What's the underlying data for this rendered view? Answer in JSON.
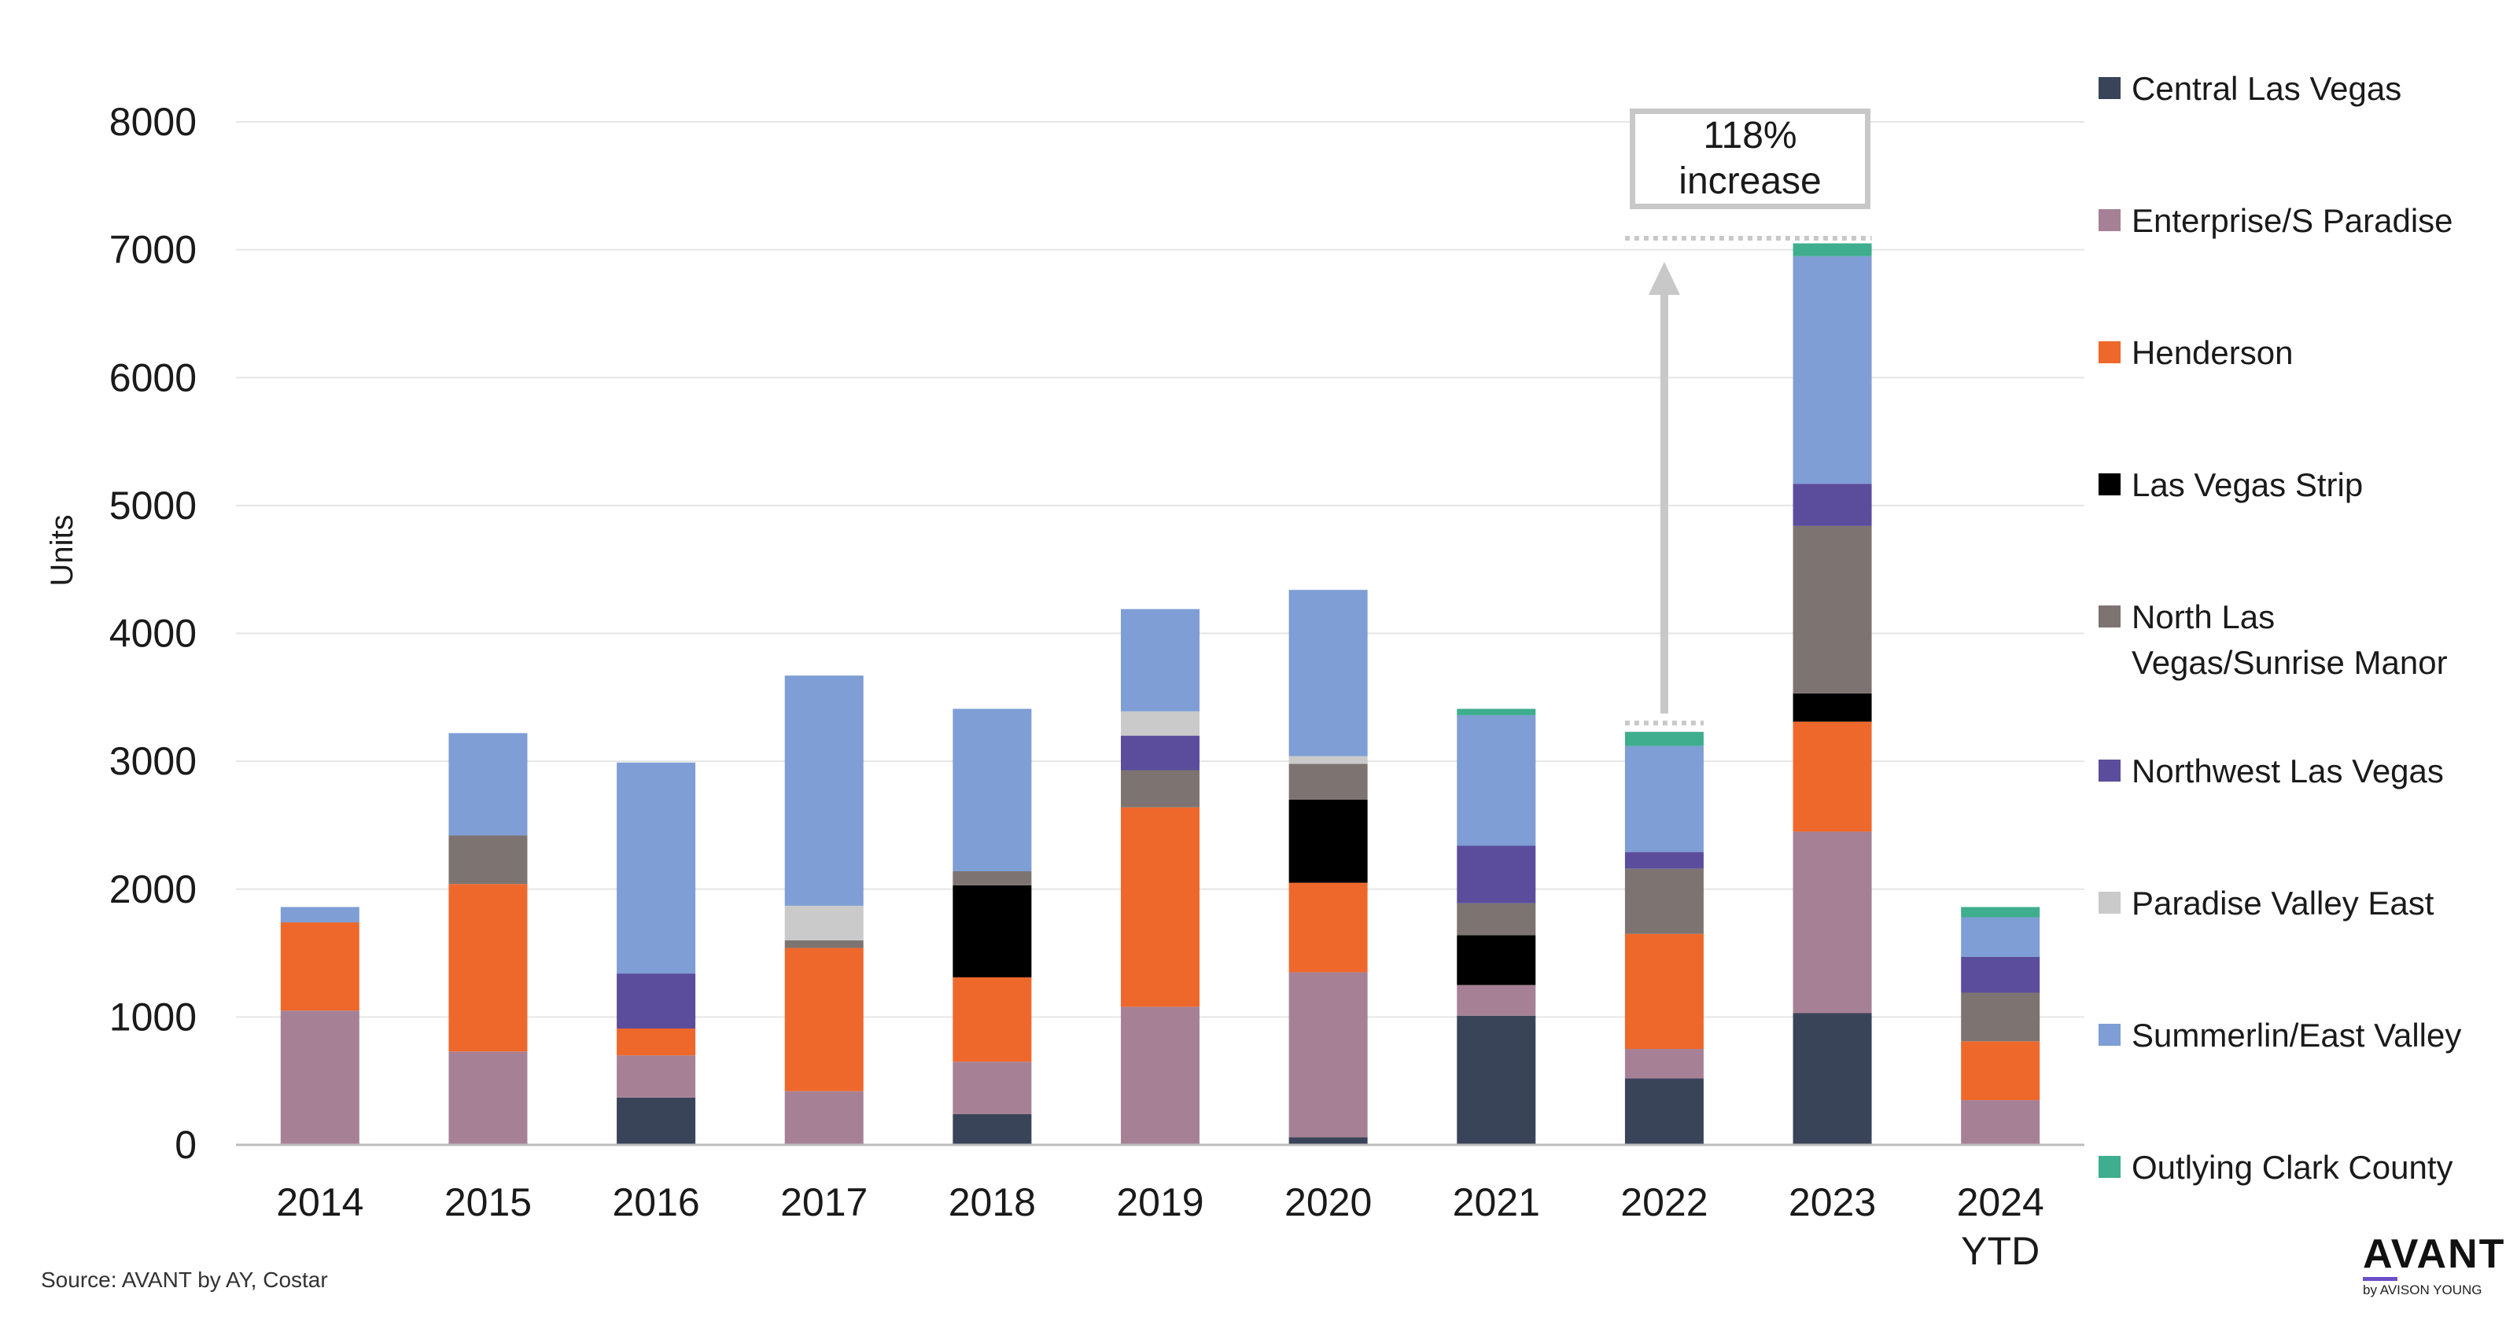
{
  "chart_data": {
    "type": "bar",
    "stacked": true,
    "title": "",
    "xlabel": "",
    "ylabel": "Units",
    "ylim": [
      0,
      8000
    ],
    "yticks": [
      0,
      1000,
      2000,
      3000,
      4000,
      5000,
      6000,
      7000,
      8000
    ],
    "grid": true,
    "legend_position": "right",
    "categories": [
      [
        "2014"
      ],
      [
        "2015"
      ],
      [
        "2016"
      ],
      [
        "2017"
      ],
      [
        "2018"
      ],
      [
        "2019"
      ],
      [
        "2020"
      ],
      [
        "2021"
      ],
      [
        "2022"
      ],
      [
        "2023"
      ],
      [
        "2024",
        "YTD"
      ]
    ],
    "series": [
      {
        "name": "Central Las Vegas",
        "color": "#3a4459",
        "values": [
          0,
          0,
          370,
          0,
          240,
          0,
          60,
          1010,
          520,
          1030,
          0
        ]
      },
      {
        "name": "Enterprise/S Paradise",
        "color": "#a68196",
        "values": [
          1050,
          730,
          330,
          420,
          410,
          1080,
          1290,
          240,
          230,
          1420,
          350
        ]
      },
      {
        "name": "Henderson",
        "color": "#ee682b",
        "values": [
          690,
          1310,
          210,
          1120,
          660,
          1560,
          700,
          0,
          900,
          860,
          460
        ]
      },
      {
        "name": "Las Vegas Strip",
        "color": "#000000",
        "values": [
          0,
          0,
          0,
          0,
          720,
          0,
          650,
          390,
          0,
          220,
          0
        ]
      },
      {
        "name": "North Las Vegas/Sunrise Manor",
        "color": "#7d7472",
        "values": [
          0,
          380,
          0,
          60,
          110,
          290,
          280,
          250,
          510,
          1310,
          380
        ]
      },
      {
        "name": "Northwest Las Vegas",
        "color": "#5b4d9c",
        "values": [
          0,
          0,
          430,
          0,
          0,
          270,
          0,
          450,
          130,
          330,
          280
        ]
      },
      {
        "name": "Paradise Valley East",
        "color": "#cacaca",
        "values": [
          0,
          0,
          0,
          270,
          0,
          190,
          60,
          0,
          0,
          0,
          0
        ]
      },
      {
        "name": "Summerlin/East Valley",
        "color": "#7e9ed5",
        "values": [
          120,
          800,
          1650,
          1800,
          1270,
          800,
          1300,
          1020,
          830,
          1780,
          310
        ]
      },
      {
        "name": "Outlying Clark County",
        "color": "#3fae8e",
        "values": [
          0,
          0,
          0,
          0,
          0,
          0,
          0,
          50,
          110,
          100,
          80
        ]
      }
    ],
    "annotation": {
      "lines": [
        "118%",
        "increase"
      ],
      "from_category": "2022",
      "from_value": 3250,
      "to_value": 7090
    }
  },
  "legend_labels": [
    [
      "Central Las Vegas"
    ],
    [
      "Enterprise/S Paradise"
    ],
    [
      "Henderson"
    ],
    [
      "Las Vegas Strip"
    ],
    [
      "North Las",
      "Vegas/Sunrise Manor"
    ],
    [
      "Northwest Las Vegas"
    ],
    [
      "Paradise Valley East"
    ],
    [
      "Summerlin/East Valley"
    ],
    [
      "Outlying Clark County"
    ]
  ],
  "source": "Source: AVANT by AY, Costar",
  "logo": {
    "main": "AVANT",
    "sub": "by AVISON YOUNG"
  },
  "colors": {
    "grid": "#e6e6e6",
    "axis": "#bdbdbd",
    "arrow": "#c8c8c8"
  }
}
